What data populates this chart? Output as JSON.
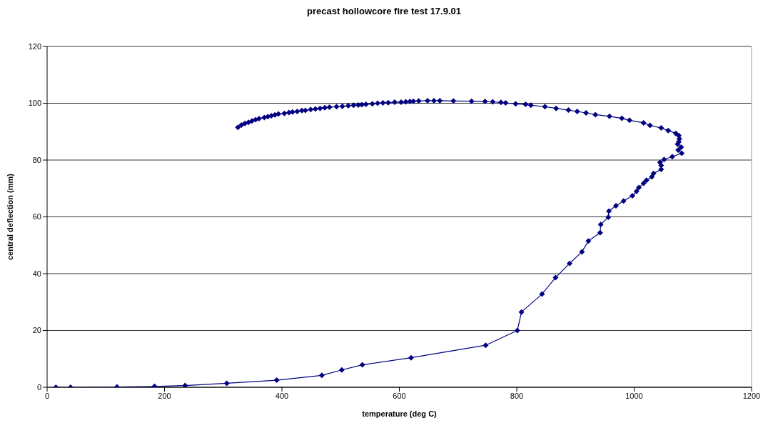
{
  "chart_data": {
    "type": "line",
    "title": "precast hollowcore fire test 17.9.01",
    "xlabel": "temperature (deg C)",
    "ylabel": "central deflection (mm)",
    "xlim": [
      0,
      1200
    ],
    "xticks": [
      0,
      200,
      400,
      600,
      800,
      1000,
      1200
    ],
    "ylim": [
      0,
      120
    ],
    "yticks": [
      0,
      20,
      40,
      60,
      80,
      100,
      120
    ],
    "grid": "y",
    "marker": "diamond",
    "line_style": "solid",
    "x": [
      15,
      40,
      119,
      183,
      235,
      306,
      391,
      468,
      502,
      537,
      620,
      747,
      801,
      808,
      843,
      866,
      890,
      911,
      922,
      942,
      943,
      956,
      957,
      969,
      982,
      997,
      1004,
      1008,
      1016,
      1021,
      1030,
      1033,
      1046,
      1046,
      1044,
      1051,
      1065,
      1081,
      1075,
      1080,
      1074,
      1076,
      1077,
      1076,
      1071,
      1058,
      1046,
      1027,
      1016,
      992,
      979,
      958,
      934,
      918,
      903,
      888,
      867,
      848,
      824,
      815,
      798,
      781,
      773,
      759,
      746,
      723,
      692,
      669,
      659,
      648,
      633,
      624,
      618,
      611,
      603,
      592,
      581,
      572,
      563,
      554,
      543,
      536,
      530,
      522,
      513,
      503,
      493,
      481,
      473,
      465,
      457,
      449,
      440,
      434,
      426,
      418,
      412,
      404,
      394,
      388,
      382,
      376,
      370,
      361,
      355,
      349,
      343,
      337,
      331,
      325
    ],
    "series": [
      {
        "color": "#000080",
        "values": [
          0,
          0,
          0.1,
          0.3,
          0.6,
          1.4,
          2.5,
          4.2,
          6.1,
          7.9,
          10.4,
          14.8,
          20,
          26.5,
          32.8,
          38.6,
          43.6,
          47.7,
          51.5,
          54.4,
          57.3,
          59.9,
          62,
          63.9,
          65.6,
          67.4,
          69,
          70.3,
          71.8,
          72.9,
          74.1,
          75.3,
          76.7,
          78.1,
          79.2,
          80.2,
          81.2,
          82.4,
          83.5,
          84.5,
          85.6,
          86.4,
          87.5,
          88.6,
          89.4,
          90.4,
          91.3,
          92.2,
          93.1,
          94,
          94.7,
          95.4,
          96,
          96.6,
          97.1,
          97.6,
          98.2,
          98.8,
          99.3,
          99.6,
          99.8,
          100.1,
          100.3,
          100.5,
          100.6,
          100.7,
          100.8,
          100.9,
          100.9,
          100.9,
          100.8,
          100.7,
          100.6,
          100.5,
          100.4,
          100.4,
          100.2,
          100.1,
          100,
          99.8,
          99.6,
          99.5,
          99.4,
          99.3,
          99.1,
          98.9,
          98.8,
          98.6,
          98.4,
          98.2,
          98,
          97.8,
          97.5,
          97.4,
          97.1,
          96.9,
          96.7,
          96.4,
          96.2,
          95.9,
          95.6,
          95.3,
          95,
          94.6,
          94.2,
          93.8,
          93.3,
          92.9,
          92.3,
          91.5
        ]
      }
    ]
  }
}
